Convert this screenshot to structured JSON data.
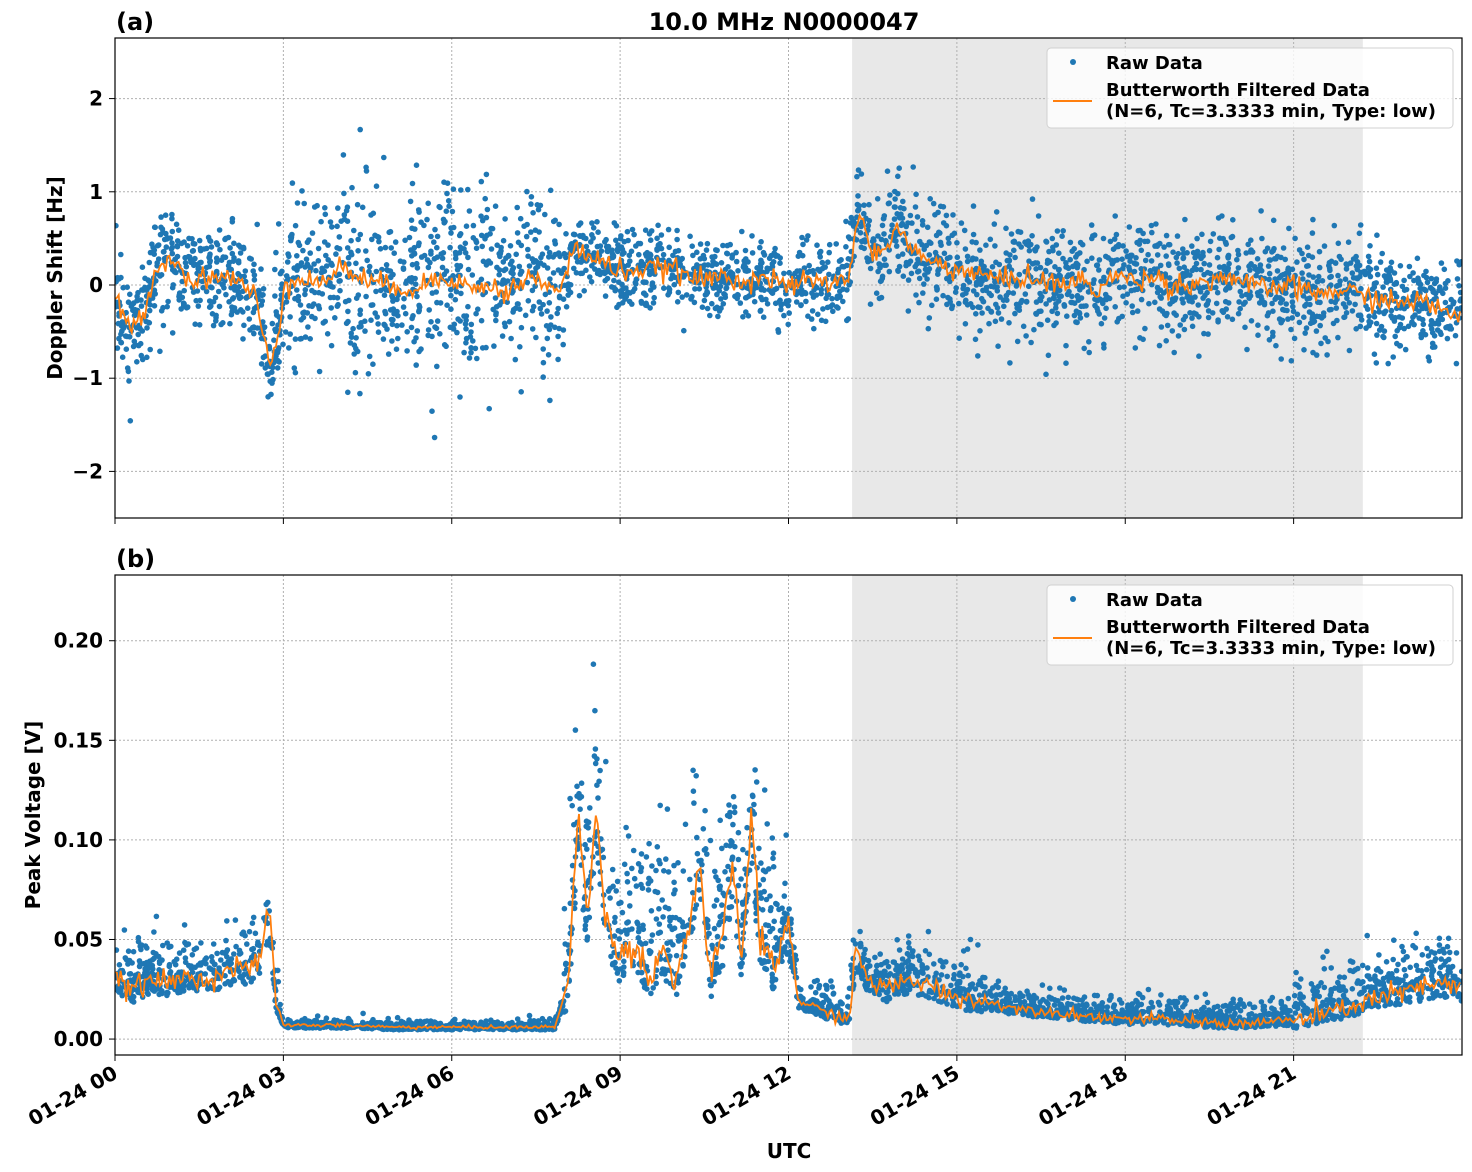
{
  "chart_data": [
    {
      "type": "scatter",
      "panel_label": "(a)",
      "title": "10.0 MHz N0000047",
      "xlabel": "",
      "ylabel": "Doppler Shift [Hz]",
      "ylim": [
        -2.5,
        2.65
      ],
      "yticks": [
        -2,
        -1,
        0,
        1,
        2
      ],
      "ytick_labels": [
        "−2",
        "−1",
        "0",
        "1",
        "2"
      ],
      "xlim": [
        "01-24 00:00",
        "01-25 00:00"
      ],
      "grid": true,
      "legend_placement": "top-right",
      "shaded_region": [
        "01-24 13:08",
        "01-24 22:14"
      ],
      "shade_color": "#e8e8e8",
      "series": [
        {
          "name": "Raw Data",
          "kind": "points",
          "color": "#1f77b4",
          "spread_by_interval": [
            {
              "start": "01-24 00:00",
              "end": "01-24 02:50",
              "sd": 0.28
            },
            {
              "start": "01-24 02:50",
              "end": "01-24 08:00",
              "sd": 0.5
            },
            {
              "start": "01-24 08:00",
              "end": "01-24 13:00",
              "sd": 0.2
            },
            {
              "start": "01-24 13:00",
              "end": "01-24 15:00",
              "sd": 0.25
            },
            {
              "start": "01-24 15:00",
              "end": "01-24 22:00",
              "sd": 0.3
            },
            {
              "start": "01-24 22:00",
              "end": "01-25 00:00",
              "sd": 0.26
            }
          ]
        },
        {
          "name": "Butterworth Filtered Data",
          "name_line2": "(N=6, Tc=3.3333 min, Type: low)",
          "kind": "line",
          "color": "#ff7f0e",
          "x": [
            "01-24 00:00",
            "01-24 00:15",
            "01-24 00:30",
            "01-24 00:45",
            "01-24 01:00",
            "01-24 01:15",
            "01-24 01:30",
            "01-24 01:45",
            "01-24 02:00",
            "01-24 02:15",
            "01-24 02:30",
            "01-24 02:45",
            "01-24 02:55",
            "01-24 03:00",
            "01-24 03:20",
            "01-24 03:40",
            "01-24 04:00",
            "01-24 04:20",
            "01-24 04:40",
            "01-24 05:00",
            "01-24 05:20",
            "01-24 05:40",
            "01-24 06:00",
            "01-24 06:20",
            "01-24 06:40",
            "01-24 07:00",
            "01-24 07:20",
            "01-24 07:40",
            "01-24 07:55",
            "01-24 08:10",
            "01-24 08:30",
            "01-24 08:50",
            "01-24 09:10",
            "01-24 09:30",
            "01-24 09:50",
            "01-24 10:10",
            "01-24 10:30",
            "01-24 10:50",
            "01-24 11:10",
            "01-24 11:30",
            "01-24 11:50",
            "01-24 12:10",
            "01-24 12:30",
            "01-24 12:50",
            "01-24 13:05",
            "01-24 13:15",
            "01-24 13:25",
            "01-24 13:40",
            "01-24 13:55",
            "01-24 14:10",
            "01-24 14:30",
            "01-24 14:50",
            "01-24 15:10",
            "01-24 15:30",
            "01-24 15:50",
            "01-24 16:10",
            "01-24 16:30",
            "01-24 16:50",
            "01-24 17:10",
            "01-24 17:30",
            "01-24 17:50",
            "01-24 18:10",
            "01-24 18:30",
            "01-24 18:50",
            "01-24 19:10",
            "01-24 19:30",
            "01-24 19:50",
            "01-24 20:10",
            "01-24 20:30",
            "01-24 20:50",
            "01-24 21:10",
            "01-24 21:30",
            "01-24 21:50",
            "01-24 22:10",
            "01-24 22:30",
            "01-24 22:50",
            "01-24 23:10",
            "01-24 23:30",
            "01-24 23:50",
            "01-25 00:00"
          ],
          "y": [
            -0.1,
            -0.5,
            -0.3,
            0.2,
            0.3,
            0.1,
            0.05,
            0.1,
            0.1,
            0.0,
            -0.1,
            -0.9,
            -0.5,
            0.0,
            0.1,
            0.0,
            0.2,
            0.1,
            0.0,
            0.0,
            -0.05,
            0.05,
            0.1,
            -0.05,
            0.0,
            -0.1,
            0.1,
            0.0,
            -0.1,
            0.4,
            0.3,
            0.2,
            0.15,
            0.15,
            0.2,
            0.1,
            0.05,
            0.1,
            0.05,
            0.1,
            0.0,
            0.0,
            0.05,
            0.0,
            0.1,
            0.85,
            0.4,
            0.3,
            0.65,
            0.4,
            0.25,
            0.2,
            0.15,
            0.1,
            0.05,
            0.1,
            0.05,
            0.0,
            0.05,
            -0.05,
            0.1,
            0.05,
            0.1,
            0.0,
            0.0,
            0.05,
            0.1,
            0.0,
            -0.05,
            0.0,
            -0.05,
            -0.1,
            -0.05,
            -0.1,
            -0.15,
            -0.2,
            -0.15,
            -0.25,
            -0.3,
            -0.3
          ]
        }
      ]
    },
    {
      "type": "scatter",
      "panel_label": "(b)",
      "xlabel": "UTC",
      "ylabel": "Peak Voltage [V]",
      "ylim": [
        -0.008,
        0.233
      ],
      "yticks": [
        0,
        0.05,
        0.1,
        0.15,
        0.2
      ],
      "ytick_labels": [
        "0.00",
        "0.05",
        "0.10",
        "0.15",
        "0.20"
      ],
      "xlim": [
        "01-24 00:00",
        "01-25 00:00"
      ],
      "xticks": [
        "01-24 00:00",
        "01-24 03:00",
        "01-24 06:00",
        "01-24 09:00",
        "01-24 12:00",
        "01-24 15:00",
        "01-24 18:00",
        "01-24 21:00"
      ],
      "xtick_labels": [
        "01-24 00",
        "01-24 03",
        "01-24 06",
        "01-24 09",
        "01-24 12",
        "01-24 15",
        "01-24 18",
        "01-24 21"
      ],
      "grid": true,
      "legend_placement": "top-right",
      "shaded_region": [
        "01-24 13:08",
        "01-24 22:14"
      ],
      "shade_color": "#e8e8e8",
      "series": [
        {
          "name": "Raw Data",
          "kind": "points",
          "color": "#1f77b4",
          "spread_by_interval": [
            {
              "start": "01-24 00:00",
              "end": "01-24 02:55",
              "sd": 0.011
            },
            {
              "start": "01-24 02:55",
              "end": "01-24 08:00",
              "sd": 0.0018
            },
            {
              "start": "01-24 08:00",
              "end": "01-24 12:05",
              "sd": 0.028
            },
            {
              "start": "01-24 12:05",
              "end": "01-24 13:05",
              "sd": 0.006
            },
            {
              "start": "01-24 13:05",
              "end": "01-24 15:30",
              "sd": 0.01
            },
            {
              "start": "01-24 15:30",
              "end": "01-24 21:00",
              "sd": 0.005
            },
            {
              "start": "01-24 21:00",
              "end": "01-25 00:00",
              "sd": 0.011
            }
          ]
        },
        {
          "name": "Butterworth Filtered Data",
          "name_line2": "(N=6, Tc=3.3333 min, Type: low)",
          "kind": "line",
          "color": "#ff7f0e",
          "x": [
            "01-24 00:00",
            "01-24 00:20",
            "01-24 00:40",
            "01-24 01:00",
            "01-24 01:20",
            "01-24 01:40",
            "01-24 02:00",
            "01-24 02:20",
            "01-24 02:35",
            "01-24 02:45",
            "01-24 02:52",
            "01-24 03:00",
            "01-24 04:00",
            "01-24 05:00",
            "01-24 06:00",
            "01-24 07:00",
            "01-24 07:50",
            "01-24 08:05",
            "01-24 08:15",
            "01-24 08:25",
            "01-24 08:35",
            "01-24 08:45",
            "01-24 09:00",
            "01-24 09:15",
            "01-24 09:30",
            "01-24 09:45",
            "01-24 10:00",
            "01-24 10:15",
            "01-24 10:25",
            "01-24 10:35",
            "01-24 10:50",
            "01-24 11:00",
            "01-24 11:10",
            "01-24 11:20",
            "01-24 11:30",
            "01-24 11:45",
            "01-24 12:00",
            "01-24 12:10",
            "01-24 12:30",
            "01-24 12:50",
            "01-24 13:05",
            "01-24 13:12",
            "01-24 13:25",
            "01-24 13:45",
            "01-24 14:10",
            "01-24 14:40",
            "01-24 15:10",
            "01-24 15:40",
            "01-24 16:10",
            "01-24 16:40",
            "01-24 17:10",
            "01-24 17:40",
            "01-24 18:10",
            "01-24 18:40",
            "01-24 19:10",
            "01-24 19:40",
            "01-24 20:10",
            "01-24 20:40",
            "01-24 21:10",
            "01-24 21:40",
            "01-24 22:10",
            "01-24 22:40",
            "01-24 23:10",
            "01-24 23:40",
            "01-25 00:00"
          ],
          "y": [
            0.03,
            0.025,
            0.03,
            0.028,
            0.032,
            0.03,
            0.035,
            0.035,
            0.04,
            0.065,
            0.02,
            0.007,
            0.007,
            0.006,
            0.006,
            0.006,
            0.006,
            0.03,
            0.115,
            0.06,
            0.115,
            0.06,
            0.04,
            0.05,
            0.03,
            0.045,
            0.03,
            0.06,
            0.09,
            0.03,
            0.05,
            0.09,
            0.04,
            0.11,
            0.05,
            0.035,
            0.06,
            0.02,
            0.015,
            0.012,
            0.01,
            0.045,
            0.03,
            0.025,
            0.03,
            0.025,
            0.02,
            0.018,
            0.015,
            0.014,
            0.012,
            0.011,
            0.01,
            0.01,
            0.009,
            0.008,
            0.008,
            0.009,
            0.01,
            0.013,
            0.018,
            0.022,
            0.025,
            0.028,
            0.025
          ]
        }
      ]
    }
  ]
}
